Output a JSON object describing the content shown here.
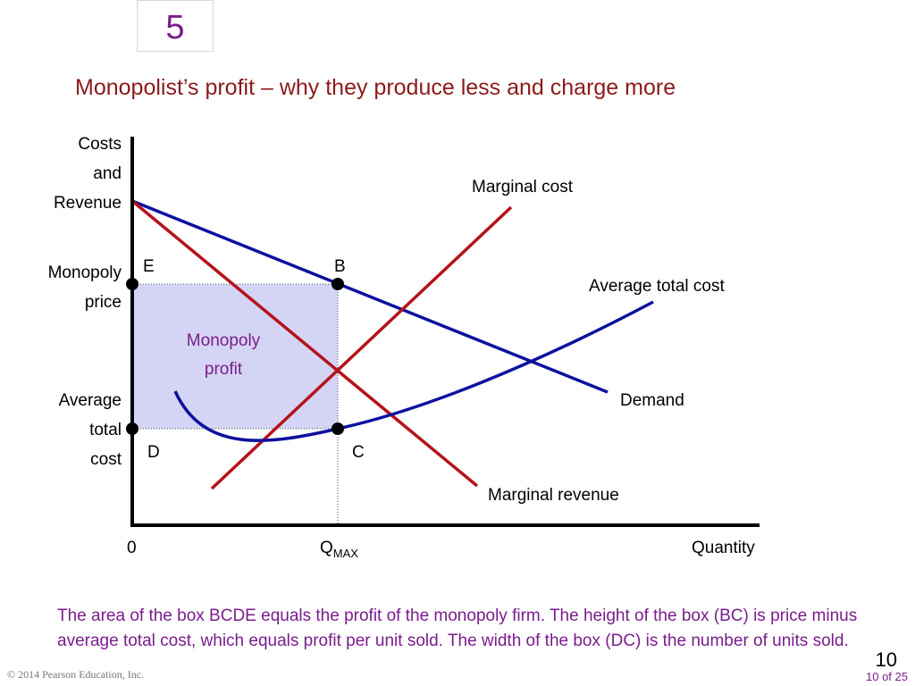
{
  "chapter_number": "5",
  "title": "Monopolist’s profit – why they produce less and charge more",
  "y_axis_label": [
    "Costs",
    "and",
    "Revenue"
  ],
  "y_markers": {
    "monopoly_price": [
      "Monopoly",
      "price"
    ],
    "average_total_cost": [
      "Average",
      "total",
      "cost"
    ]
  },
  "x_axis": {
    "origin": "0",
    "q_main": "Q",
    "q_sub": "MAX",
    "label": "Quantity"
  },
  "curves": {
    "marginal_cost": "Marginal cost",
    "average_total_cost": "Average total cost",
    "demand": "Demand",
    "marginal_revenue": "Marginal revenue"
  },
  "points": {
    "e": "E",
    "b": "B",
    "d": "D",
    "c": "C"
  },
  "profit_area": [
    "Monopoly",
    "profit"
  ],
  "caption": "The area of the box BCDE equals the profit of the monopoly firm. The height of the box (BC) is price minus average total cost, which equals profit per unit sold. The width of the box (DC) is the number of units sold.",
  "footer": {
    "copyright": "© 2014 Pearson Education, Inc.",
    "slide_number": "10",
    "page_of": "10 of 25"
  },
  "colors": {
    "demand": "#0d109e",
    "marginal_revenue": "#b5121b",
    "marginal_cost": "#b5121b",
    "average_total_cost": "#0d109e",
    "profit_fill": "#d4d4f4",
    "title": "#8b1a1a",
    "caption": "#7a1d8c"
  }
}
